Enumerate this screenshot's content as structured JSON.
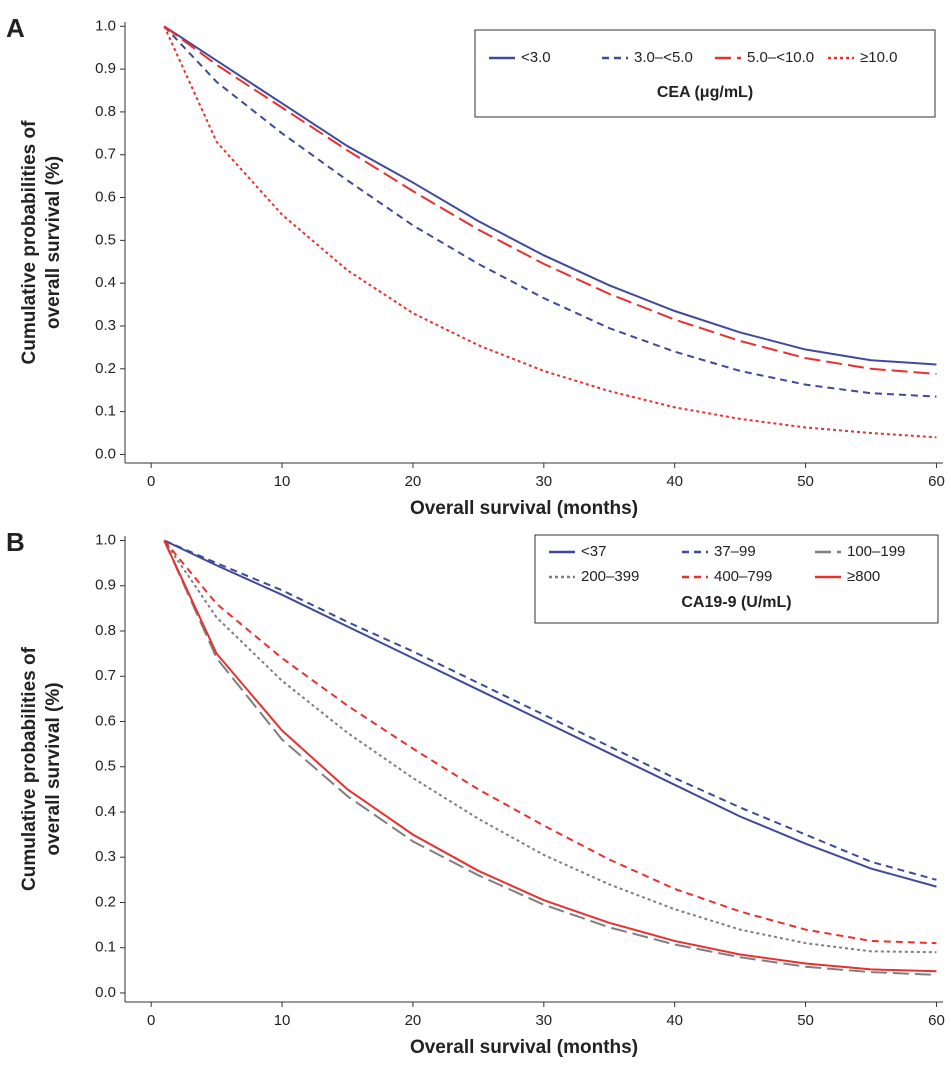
{
  "chart_data": [
    {
      "type": "line",
      "panel_label": "A",
      "xlabel": "Overall survival (months)",
      "ylabel": [
        "Cumulative probabilities of",
        "overall survival (%)"
      ],
      "legend_title": "CEA (μg/mL)",
      "legend": "upper right",
      "xlim": [
        -2,
        60.5
      ],
      "xticks": [
        0,
        10,
        20,
        30,
        40,
        50,
        60
      ],
      "ylim": [
        -0.02,
        1.01
      ],
      "yticks": [
        {
          "value": 0,
          "label": "0.0"
        },
        0.1,
        0.2,
        0.3,
        0.4,
        0.5,
        0.6,
        0.7,
        0.8,
        0.9,
        {
          "value": 1,
          "label": "1.0"
        }
      ],
      "x": [
        1,
        5,
        10,
        15,
        20,
        25,
        30,
        35,
        40,
        45,
        50,
        55,
        60
      ],
      "series": [
        {
          "name": "<3.0",
          "color": "#3f4a9a",
          "linestyle": "solid",
          "values": [
            1,
            0.92,
            0.82,
            0.72,
            0.635,
            0.545,
            0.465,
            0.395,
            0.335,
            0.285,
            0.245,
            0.22,
            0.21
          ]
        },
        {
          "name": "3.0–<5.0",
          "color": "#3f4a9a",
          "linestyle": "dashed",
          "values": [
            1,
            0.87,
            0.75,
            0.64,
            0.535,
            0.445,
            0.365,
            0.295,
            0.24,
            0.195,
            0.163,
            0.143,
            0.135
          ]
        },
        {
          "name": "5.0–<10.0",
          "color": "#e8312f",
          "linestyle": "longdash",
          "values": [
            1,
            0.91,
            0.81,
            0.71,
            0.615,
            0.525,
            0.445,
            0.375,
            0.315,
            0.265,
            0.225,
            0.2,
            0.188
          ]
        },
        {
          "name": "≥10.0",
          "color": "#e8312f",
          "linestyle": "dotted",
          "values": [
            1,
            0.73,
            0.56,
            0.43,
            0.33,
            0.255,
            0.195,
            0.148,
            0.11,
            0.083,
            0.063,
            0.05,
            0.04
          ]
        }
      ]
    },
    {
      "type": "line",
      "panel_label": "B",
      "xlabel": "Overall survival (months)",
      "ylabel": [
        "Cumulative probabilities of",
        "overall survival (%)"
      ],
      "legend_title": "CA19-9 (U/mL)",
      "legend": "upper right",
      "xlim": [
        -2,
        60.5
      ],
      "xticks": [
        0,
        10,
        20,
        30,
        40,
        50,
        60
      ],
      "ylim": [
        -0.02,
        1.01
      ],
      "yticks": [
        {
          "value": 0,
          "label": "0.0"
        },
        0.1,
        0.2,
        0.3,
        0.4,
        0.5,
        0.6,
        0.7,
        0.8,
        0.9,
        {
          "value": 1,
          "label": "1.0"
        }
      ],
      "x": [
        1,
        5,
        10,
        15,
        20,
        25,
        30,
        35,
        40,
        45,
        50,
        55,
        60
      ],
      "series": [
        {
          "name": "<37",
          "color": "#3f4a9a",
          "linestyle": "solid",
          "values": [
            1,
            0.945,
            0.88,
            0.81,
            0.74,
            0.67,
            0.6,
            0.53,
            0.46,
            0.39,
            0.33,
            0.275,
            0.235
          ]
        },
        {
          "name": "37–99",
          "color": "#3f4a9a",
          "linestyle": "dashed",
          "values": [
            1,
            0.95,
            0.89,
            0.82,
            0.755,
            0.685,
            0.615,
            0.545,
            0.475,
            0.41,
            0.35,
            0.29,
            0.25
          ]
        },
        {
          "name": "100–199",
          "color": "#7f7f7f",
          "linestyle": "longdash",
          "values": [
            1,
            0.74,
            0.56,
            0.435,
            0.335,
            0.26,
            0.195,
            0.145,
            0.107,
            0.079,
            0.058,
            0.046,
            0.04
          ]
        },
        {
          "name": "200–399",
          "color": "#7f7f7f",
          "linestyle": "dotted",
          "values": [
            1,
            0.83,
            0.69,
            0.575,
            0.475,
            0.385,
            0.305,
            0.24,
            0.185,
            0.14,
            0.11,
            0.092,
            0.09
          ]
        },
        {
          "name": "400–799",
          "color": "#e8312f",
          "linestyle": "dashed",
          "values": [
            1,
            0.86,
            0.74,
            0.635,
            0.54,
            0.45,
            0.37,
            0.295,
            0.23,
            0.18,
            0.14,
            0.115,
            0.11
          ]
        },
        {
          "name": "≥800",
          "color": "#e8312f",
          "linestyle": "solid",
          "values": [
            1,
            0.75,
            0.58,
            0.45,
            0.35,
            0.27,
            0.205,
            0.155,
            0.115,
            0.085,
            0.065,
            0.052,
            0.048
          ]
        }
      ]
    }
  ]
}
